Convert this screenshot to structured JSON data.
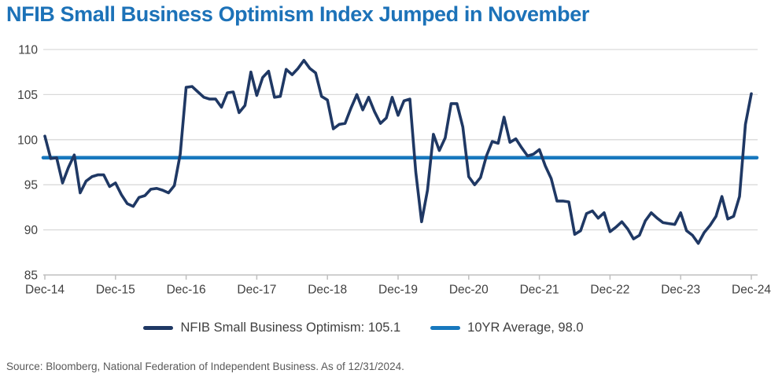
{
  "title": {
    "text": "NFIB Small Business Optimism Index Jumped in November",
    "color": "#1C72B8"
  },
  "legend": {
    "items": [
      {
        "label": "NFIB Small Business Optimism: 105.1",
        "color": "#1F3864"
      },
      {
        "label": "10YR Average, 98.0",
        "color": "#1778BE"
      }
    ]
  },
  "source_note": "Source: Bloomberg, National Federation of Independent Business. As of 12/31/2024.",
  "chart_data": {
    "type": "line",
    "title": "NFIB Small Business Optimism Index Jumped in November",
    "frequency": "monthly",
    "x_start": "Dec-2014",
    "x_end": "Dec-2024",
    "x_tick_labels": [
      "Dec-14",
      "Dec-15",
      "Dec-16",
      "Dec-17",
      "Dec-18",
      "Dec-19",
      "Dec-20",
      "Dec-21",
      "Dec-22",
      "Dec-23",
      "Dec-24"
    ],
    "ylim": [
      85,
      110
    ],
    "y_ticks": [
      85,
      90,
      95,
      100,
      105,
      110
    ],
    "grid": "horizontal",
    "legend_position": "bottom",
    "colors": {
      "gridline": "#D9D9D9",
      "axis": "#BFBFBF",
      "tick_label": "#404040"
    },
    "series": [
      {
        "name": "NFIB Small Business Optimism: 105.1",
        "type": "line",
        "color": "#1F3864",
        "last_value": 105.1,
        "values": [
          100.4,
          97.9,
          98.0,
          95.2,
          96.9,
          98.3,
          94.1,
          95.4,
          95.9,
          96.1,
          96.1,
          94.8,
          95.2,
          93.9,
          92.9,
          92.6,
          93.6,
          93.8,
          94.5,
          94.6,
          94.4,
          94.1,
          94.9,
          98.4,
          105.8,
          105.9,
          105.3,
          104.7,
          104.5,
          104.5,
          103.6,
          105.2,
          105.3,
          103.0,
          103.8,
          107.5,
          104.9,
          106.9,
          107.6,
          104.7,
          104.8,
          107.8,
          107.2,
          107.9,
          108.8,
          107.9,
          107.4,
          104.8,
          104.4,
          101.2,
          101.7,
          101.8,
          103.5,
          105.0,
          103.3,
          104.7,
          103.1,
          101.8,
          102.4,
          104.7,
          102.7,
          104.3,
          104.5,
          96.4,
          90.9,
          94.4,
          100.6,
          98.8,
          100.2,
          104.0,
          104.0,
          101.4,
          95.9,
          95.0,
          95.8,
          98.2,
          99.8,
          99.6,
          102.5,
          99.7,
          100.1,
          99.1,
          98.2,
          98.4,
          98.9,
          97.1,
          95.7,
          93.2,
          93.2,
          93.1,
          89.5,
          89.9,
          91.8,
          92.1,
          91.3,
          91.9,
          89.8,
          90.3,
          90.9,
          90.1,
          89.0,
          89.4,
          91.0,
          91.9,
          91.3,
          90.8,
          90.7,
          90.6,
          91.9,
          89.9,
          89.4,
          88.5,
          89.7,
          90.5,
          91.5,
          93.7,
          91.2,
          91.5,
          93.7,
          101.7,
          105.1
        ]
      },
      {
        "name": "10YR Average, 98.0",
        "type": "hline",
        "color": "#1778BE",
        "value": 98.0
      }
    ]
  }
}
